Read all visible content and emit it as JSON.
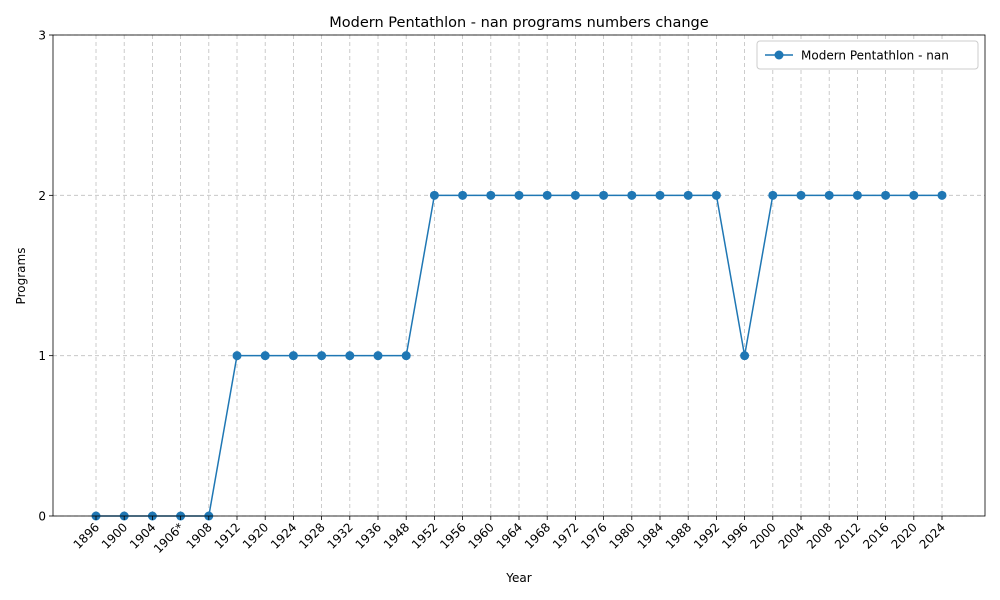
{
  "chart_data": {
    "type": "line",
    "title": "Modern Pentathlon - nan programs numbers change",
    "xlabel": "Year",
    "ylabel": "Programs",
    "categories": [
      "1896",
      "1900",
      "1904",
      "1906*",
      "1908",
      "1912",
      "1920",
      "1924",
      "1928",
      "1932",
      "1936",
      "1948",
      "1952",
      "1956",
      "1960",
      "1964",
      "1968",
      "1972",
      "1976",
      "1980",
      "1984",
      "1988",
      "1992",
      "1996",
      "2000",
      "2004",
      "2008",
      "2012",
      "2016",
      "2020",
      "2024"
    ],
    "series": [
      {
        "name": "Modern Pentathlon - nan",
        "values": [
          0,
          0,
          0,
          0,
          0,
          1,
          1,
          1,
          1,
          1,
          1,
          1,
          2,
          2,
          2,
          2,
          2,
          2,
          2,
          2,
          2,
          2,
          2,
          1,
          2,
          2,
          2,
          2,
          2,
          2,
          2
        ],
        "color": "#1f77b4"
      }
    ],
    "ylim": [
      0,
      3
    ],
    "yticks": [
      "0",
      "1",
      "2",
      "3"
    ],
    "grid": true,
    "legend_position": "top-right"
  }
}
